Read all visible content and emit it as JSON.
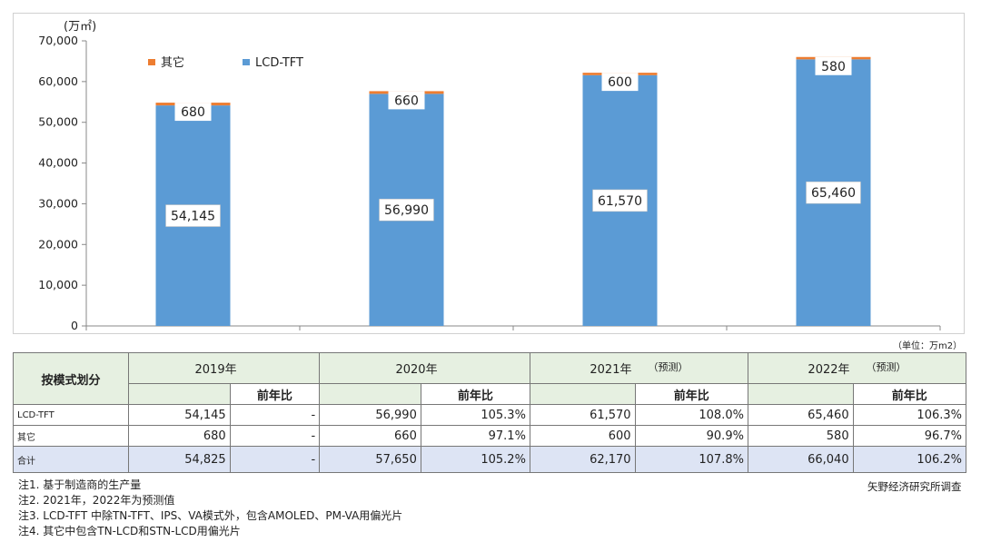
{
  "chart_data": {
    "type": "bar",
    "stacked": true,
    "categories": [
      "2019",
      "2020",
      "2021",
      "2022"
    ],
    "series": [
      {
        "name": "LCD-TFT",
        "values": [
          54145,
          56990,
          61570,
          65460
        ],
        "labels": [
          "54,145",
          "56,990",
          "61,570",
          "65,460"
        ],
        "color": "#5b9bd5"
      },
      {
        "name": "其它",
        "values": [
          680,
          660,
          600,
          580
        ],
        "labels": [
          "680",
          "660",
          "600",
          "580"
        ],
        "color": "#ed7d31"
      }
    ],
    "ylabel": "(万㎡)",
    "ylim": [
      0,
      70000
    ],
    "yticks": [
      0,
      10000,
      20000,
      30000,
      40000,
      50000,
      60000,
      70000
    ],
    "ytick_labels": [
      "0",
      "10,000",
      "20,000",
      "30,000",
      "40,000",
      "50,000",
      "60,000",
      "70,000"
    ],
    "legend_position": "top-left",
    "grid": false
  },
  "unit_note": "（单位：万m2）",
  "table": {
    "corner_label": "按模式划分",
    "years": [
      {
        "label": "2019年",
        "forecast": ""
      },
      {
        "label": "2020年",
        "forecast": ""
      },
      {
        "label": "2021年",
        "forecast": "（预测）"
      },
      {
        "label": "2022年",
        "forecast": "（预测）"
      }
    ],
    "yoy_label": "前年比",
    "rows": [
      {
        "label": "LCD-TFT",
        "cells": [
          "54,145",
          "-",
          "56,990",
          "105.3%",
          "61,570",
          "108.0%",
          "65,460",
          "106.3%"
        ]
      },
      {
        "label": "其它",
        "cells": [
          "680",
          "-",
          "660",
          "97.1%",
          "600",
          "90.9%",
          "580",
          "96.7%"
        ]
      },
      {
        "label": "合计",
        "cells": [
          "54,825",
          "-",
          "57,650",
          "105.2%",
          "62,170",
          "107.8%",
          "66,040",
          "106.2%"
        ]
      }
    ]
  },
  "notes": [
    "注1. 基于制造商的生产量",
    "注2. 2021年，2022年为预测值",
    "注3. LCD-TFT 中除TN-TFT、IPS、VA模式外，包含AMOLED、PM-VA用偏光片",
    "注4. 其它中包含TN-LCD和STN-LCD用偏光片"
  ],
  "source": "矢野经济研究所调查"
}
